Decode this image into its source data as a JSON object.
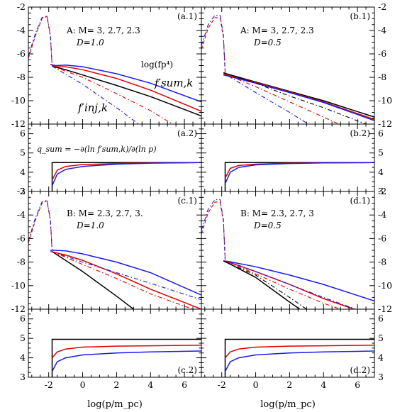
{
  "x_axis_label": "log(p/m_pc)",
  "x_ticks": [
    -2,
    0,
    2,
    4,
    6
  ],
  "y_ticks_top": [
    -12,
    -10,
    -8,
    -6,
    -4,
    -2
  ],
  "y_ticks_bottom": [
    3,
    4,
    5,
    6
  ],
  "colors": {
    "blue": "#1a1aee",
    "red": "#e00000",
    "black": "#000000"
  },
  "panels": [
    {
      "tag": "(a.1)",
      "group_text": "A: M= 3, 2.7, 2.3",
      "d_text": "D=1.0"
    },
    {
      "tag": "(b.1)",
      "group_text": "A: M= 3, 2.7, 2.3",
      "d_text": "D=0.5"
    },
    {
      "tag": "(a.2)"
    },
    {
      "tag": "(b.2)"
    },
    {
      "tag": "(c.1)",
      "group_text": "B: M= 2.3, 2.7, 3.",
      "d_text": "D=1.0"
    },
    {
      "tag": "(d.1)",
      "group_text": "B: M= 2.3, 2.7, 3",
      "d_text": "D=0.5"
    },
    {
      "tag": "(c.2)"
    },
    {
      "tag": "(d.2)"
    }
  ],
  "annotations": {
    "logfp4": "log(fp⁴)",
    "fsum": "f′sum,k",
    "finj": "f′inj,k",
    "qsum": "q_sum = −∂(ln f′sum,k)/∂(ln p)"
  },
  "chart_data": [
    {
      "panel": "a.1",
      "type": "line",
      "xlim": [
        -3.2,
        7
      ],
      "ylim": [
        -12,
        -2
      ],
      "xlabel": "",
      "ylabel": "",
      "series": [
        {
          "color": "blue",
          "style": "solid",
          "x": [
            -1.9,
            -1.6,
            -1,
            0,
            2,
            4,
            7
          ],
          "y": [
            -6.9,
            -7.0,
            -6.95,
            -7.1,
            -7.7,
            -8.5,
            -10.1
          ]
        },
        {
          "color": "red",
          "style": "solid",
          "x": [
            -1.9,
            -1.6,
            -1,
            0,
            2,
            4,
            7
          ],
          "y": [
            -6.9,
            -7.1,
            -7.1,
            -7.35,
            -8.1,
            -9.1,
            -10.9
          ]
        },
        {
          "color": "black",
          "style": "solid",
          "x": [
            -1.8,
            -1,
            0,
            2,
            4,
            7
          ],
          "y": [
            -7.05,
            -7.35,
            -7.8,
            -8.7,
            -9.65,
            -11.3
          ]
        },
        {
          "color": "red",
          "style": "dash-dot",
          "x": [
            -1.8,
            0,
            2,
            4,
            5.3
          ],
          "y": [
            -7.05,
            -8.0,
            -9.4,
            -10.85,
            -12
          ]
        },
        {
          "color": "blue",
          "style": "dash-dot",
          "x": [
            -1.8,
            0,
            2,
            3.3
          ],
          "y": [
            -7.05,
            -8.6,
            -10.6,
            -12
          ]
        },
        {
          "color": "red",
          "style": "dashed",
          "x": [
            -3.2,
            -2.8,
            -2.4,
            -2.1,
            -1.9,
            -1.8
          ],
          "y": [
            -6.4,
            -4.5,
            -3.0,
            -2.8,
            -4.5,
            -7.0
          ]
        },
        {
          "color": "blue",
          "style": "dash-dot",
          "x": [
            -3.2,
            -2.8,
            -2.4,
            -2.1,
            -1.9,
            -1.8
          ],
          "y": [
            -6.2,
            -4.3,
            -2.9,
            -2.75,
            -4.4,
            -7.0
          ]
        }
      ]
    },
    {
      "panel": "b.1",
      "type": "line",
      "xlim": [
        -3.2,
        7
      ],
      "ylim": [
        -12,
        -2
      ],
      "xlabel": "",
      "ylabel": "",
      "series": [
        {
          "color": "black",
          "style": "solid",
          "x": [
            -1.9,
            -1.6,
            0,
            2,
            4,
            7
          ],
          "y": [
            -7.6,
            -7.75,
            -8.4,
            -9.2,
            -10.0,
            -11.4
          ]
        },
        {
          "color": "red",
          "style": "solid",
          "x": [
            -1.9,
            -1.6,
            0,
            2,
            4,
            7
          ],
          "y": [
            -7.7,
            -7.85,
            -8.45,
            -9.25,
            -10.1,
            -11.6
          ]
        },
        {
          "color": "blue",
          "style": "solid",
          "x": [
            -1.9,
            -1.6,
            0,
            2,
            4,
            7
          ],
          "y": [
            -7.8,
            -7.9,
            -8.5,
            -9.3,
            -10.15,
            -11.7
          ]
        },
        {
          "color": "black",
          "style": "dash-dot",
          "x": [
            -1.6,
            0,
            2,
            4,
            6.5
          ],
          "y": [
            -7.75,
            -8.5,
            -9.6,
            -10.6,
            -12
          ]
        },
        {
          "color": "red",
          "style": "dash-dot",
          "x": [
            -1.6,
            0,
            2,
            4,
            4.9
          ],
          "y": [
            -7.85,
            -8.8,
            -10.1,
            -11.4,
            -12
          ]
        },
        {
          "color": "blue",
          "style": "dash-dot",
          "x": [
            -1.6,
            0,
            2,
            3.1
          ],
          "y": [
            -7.9,
            -9.3,
            -11.0,
            -12
          ]
        },
        {
          "color": "red",
          "style": "dashed",
          "x": [
            -3.2,
            -2.8,
            -2.4,
            -2.1,
            -1.9,
            -1.8
          ],
          "y": [
            -5.6,
            -3.8,
            -2.9,
            -2.9,
            -4.6,
            -7.6
          ]
        },
        {
          "color": "blue",
          "style": "dash-dot",
          "x": [
            -3.2,
            -2.8,
            -2.4,
            -2.1,
            -1.9,
            -1.8
          ],
          "y": [
            -5.3,
            -3.5,
            -2.7,
            -2.7,
            -4.4,
            -7.6
          ]
        }
      ]
    },
    {
      "panel": "a.2",
      "type": "line",
      "xlim": [
        -3.2,
        7
      ],
      "ylim": [
        3,
        6.5
      ],
      "xlabel": "",
      "ylabel": "",
      "series": [
        {
          "color": "black",
          "style": "solid",
          "x": [
            -1.8,
            -1.8,
            7
          ],
          "y": [
            3,
            4.5,
            4.5
          ]
        },
        {
          "color": "red",
          "style": "solid",
          "x": [
            -1.8,
            -1.5,
            -1,
            0,
            2,
            4,
            7
          ],
          "y": [
            3.6,
            4.1,
            4.3,
            4.4,
            4.45,
            4.48,
            4.5
          ]
        },
        {
          "color": "blue",
          "style": "solid",
          "x": [
            -1.8,
            -1.5,
            -1,
            0,
            2,
            4,
            7
          ],
          "y": [
            3.3,
            3.9,
            4.15,
            4.3,
            4.42,
            4.47,
            4.5
          ]
        }
      ]
    },
    {
      "panel": "b.2",
      "type": "line",
      "xlim": [
        -3.2,
        7
      ],
      "ylim": [
        3,
        6.5
      ],
      "xlabel": "",
      "ylabel": "",
      "series": [
        {
          "color": "black",
          "style": "solid",
          "x": [
            -1.8,
            -1.8,
            7
          ],
          "y": [
            3,
            4.5,
            4.5
          ]
        },
        {
          "color": "red",
          "style": "solid",
          "x": [
            -1.8,
            -1.5,
            -1,
            0,
            2,
            4,
            7
          ],
          "y": [
            3.7,
            4.2,
            4.35,
            4.42,
            4.47,
            4.49,
            4.5
          ]
        },
        {
          "color": "blue",
          "style": "solid",
          "x": [
            -1.8,
            -1.5,
            -1,
            0,
            2,
            4,
            7
          ],
          "y": [
            3.4,
            4.0,
            4.25,
            4.38,
            4.45,
            4.48,
            4.5
          ]
        }
      ]
    },
    {
      "panel": "c.1",
      "type": "line",
      "xlim": [
        -3.2,
        7
      ],
      "ylim": [
        -12,
        -2
      ],
      "xlabel": "",
      "ylabel": "",
      "series": [
        {
          "color": "blue",
          "style": "solid",
          "x": [
            -1.9,
            -1.6,
            -1,
            0,
            2,
            4,
            7
          ],
          "y": [
            -7.0,
            -7.0,
            -7.05,
            -7.3,
            -8.0,
            -8.9,
            -10.8
          ]
        },
        {
          "color": "red",
          "style": "solid",
          "x": [
            -1.9,
            -1.6,
            -1,
            0,
            2,
            4,
            7
          ],
          "y": [
            -7.1,
            -7.2,
            -7.4,
            -7.85,
            -9.0,
            -10.3,
            -12
          ]
        },
        {
          "color": "black",
          "style": "solid",
          "x": [
            -1.8,
            0,
            2,
            3.0
          ],
          "y": [
            -7.1,
            -8.8,
            -10.9,
            -12
          ]
        },
        {
          "color": "blue",
          "style": "dash-dot",
          "x": [
            -1.8,
            0,
            2,
            4,
            7
          ],
          "y": [
            -7.1,
            -8.0,
            -8.9,
            -9.8,
            -11.2
          ]
        },
        {
          "color": "red",
          "style": "dash-dot",
          "x": [
            -1.8,
            0,
            2,
            4,
            6.5
          ],
          "y": [
            -7.1,
            -8.2,
            -9.4,
            -10.7,
            -12
          ]
        },
        {
          "color": "red",
          "style": "dashed",
          "x": [
            -3.2,
            -2.8,
            -2.4,
            -2.1,
            -1.9,
            -1.8
          ],
          "y": [
            -6.4,
            -4.5,
            -3.0,
            -2.8,
            -4.5,
            -7.0
          ]
        },
        {
          "color": "blue",
          "style": "dash-dot",
          "x": [
            -3.2,
            -2.8,
            -2.4,
            -2.1,
            -1.9,
            -1.8
          ],
          "y": [
            -6.2,
            -4.3,
            -2.9,
            -2.75,
            -4.4,
            -7.0
          ]
        }
      ]
    },
    {
      "panel": "d.1",
      "type": "line",
      "xlim": [
        -3.2,
        7
      ],
      "ylim": [
        -12,
        -2
      ],
      "xlabel": "",
      "ylabel": "",
      "series": [
        {
          "color": "blue",
          "style": "solid",
          "x": [
            -1.9,
            -1.6,
            0,
            2,
            4,
            7
          ],
          "y": [
            -7.9,
            -7.95,
            -8.4,
            -9.1,
            -9.9,
            -11.3
          ]
        },
        {
          "color": "red",
          "style": "solid",
          "x": [
            -1.9,
            -1.6,
            0,
            2,
            4,
            5.8
          ],
          "y": [
            -7.9,
            -8.0,
            -8.8,
            -9.9,
            -11.1,
            -12
          ]
        },
        {
          "color": "black",
          "style": "solid",
          "x": [
            -1.9,
            -1.6,
            0,
            2,
            2.6
          ],
          "y": [
            -7.9,
            -8.1,
            -9.3,
            -11.4,
            -12
          ]
        },
        {
          "color": "blue",
          "style": "dash-dot",
          "x": [
            -1.6,
            0,
            2,
            4,
            5.9
          ],
          "y": [
            -7.95,
            -8.8,
            -9.9,
            -11.0,
            -12
          ]
        },
        {
          "color": "red",
          "style": "dash-dot",
          "x": [
            -1.6,
            0,
            2,
            4,
            5.0
          ],
          "y": [
            -8.0,
            -9.0,
            -10.3,
            -11.5,
            -12
          ]
        },
        {
          "color": "black",
          "style": "dash-dot",
          "x": [
            -1.6,
            0,
            2,
            3.0
          ],
          "y": [
            -8.1,
            -9.1,
            -11.0,
            -12
          ]
        },
        {
          "color": "red",
          "style": "dashed",
          "x": [
            -3.2,
            -2.8,
            -2.4,
            -2.1,
            -1.9,
            -1.8
          ],
          "y": [
            -5.6,
            -3.8,
            -2.9,
            -2.9,
            -4.6,
            -7.8
          ]
        },
        {
          "color": "blue",
          "style": "dash-dot",
          "x": [
            -3.2,
            -2.8,
            -2.4,
            -2.1,
            -1.9,
            -1.8
          ],
          "y": [
            -5.3,
            -3.5,
            -2.7,
            -2.7,
            -4.4,
            -7.8
          ]
        }
      ]
    },
    {
      "panel": "c.2",
      "type": "line",
      "xlim": [
        -3.2,
        7
      ],
      "ylim": [
        3,
        6.5
      ],
      "xlabel": "",
      "ylabel": "",
      "series": [
        {
          "color": "black",
          "style": "solid",
          "x": [
            -1.8,
            -1.8,
            7
          ],
          "y": [
            3,
            4.95,
            4.95
          ]
        },
        {
          "color": "red",
          "style": "solid",
          "x": [
            -1.8,
            -1.5,
            -1,
            0,
            2,
            4,
            7
          ],
          "y": [
            4.0,
            4.3,
            4.45,
            4.55,
            4.6,
            4.62,
            4.65
          ]
        },
        {
          "color": "blue",
          "style": "solid",
          "x": [
            -1.8,
            -1.5,
            -1,
            0,
            2,
            4,
            7
          ],
          "y": [
            3.3,
            3.8,
            4.0,
            4.15,
            4.25,
            4.3,
            4.35
          ]
        }
      ]
    },
    {
      "panel": "d.2",
      "type": "line",
      "xlim": [
        -3.2,
        7
      ],
      "ylim": [
        3,
        6.5
      ],
      "xlabel": "",
      "ylabel": "",
      "series": [
        {
          "color": "black",
          "style": "solid",
          "x": [
            -1.8,
            -1.8,
            7
          ],
          "y": [
            3,
            4.95,
            4.95
          ]
        },
        {
          "color": "red",
          "style": "solid",
          "x": [
            -1.8,
            -1.5,
            -1,
            0,
            2,
            4,
            7
          ],
          "y": [
            4.0,
            4.3,
            4.45,
            4.55,
            4.6,
            4.62,
            4.65
          ]
        },
        {
          "color": "blue",
          "style": "solid",
          "x": [
            -1.8,
            -1.5,
            -1,
            0,
            2,
            4,
            7
          ],
          "y": [
            3.3,
            3.8,
            4.0,
            4.15,
            4.25,
            4.3,
            4.35
          ]
        }
      ]
    }
  ]
}
